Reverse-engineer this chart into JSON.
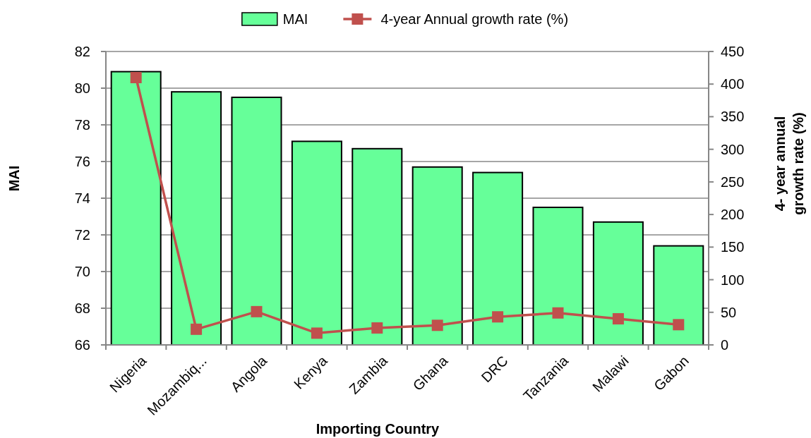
{
  "chart_data": {
    "type": "bar",
    "xlabel": "Importing Country",
    "ylabel": "MAI",
    "y2label": "4- year annual growth rate (%)",
    "categories": [
      "Nigeria",
      "Mozambiq...",
      "Angola",
      "Kenya",
      "Zambia",
      "Ghana",
      "DRC",
      "Tanzania",
      "Malawi",
      "Gabon"
    ],
    "series": [
      {
        "name": "MAI",
        "color": "#66ff99",
        "values": [
          80.9,
          79.8,
          79.5,
          77.1,
          76.7,
          75.7,
          75.4,
          73.5,
          72.7,
          71.4
        ]
      },
      {
        "name": "4-year Annual growth rate (%)",
        "type": "line",
        "axis": "y2",
        "color": "#c0504d",
        "values": [
          410,
          24,
          51,
          18,
          26,
          30,
          43,
          49,
          40,
          31
        ]
      }
    ],
    "ylim": [
      66,
      82
    ],
    "yticks": [
      66,
      68,
      70,
      72,
      74,
      76,
      78,
      80,
      82
    ],
    "y2lim": [
      0,
      450
    ],
    "y2ticks": [
      0,
      50,
      100,
      150,
      200,
      250,
      300,
      350,
      400,
      450
    ],
    "grid": "y",
    "legend": "top",
    "marker": "square"
  }
}
